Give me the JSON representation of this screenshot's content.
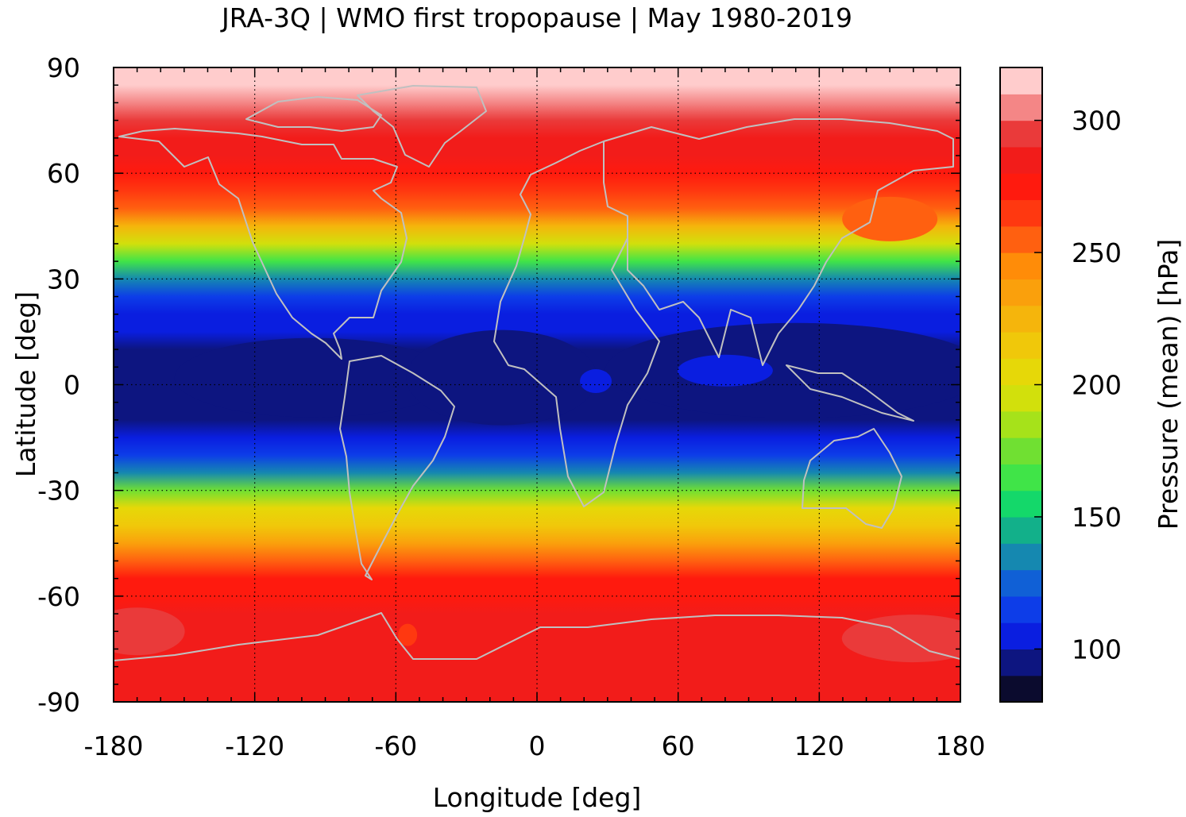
{
  "chart_data": {
    "type": "heatmap",
    "title": "JRA-3Q | WMO first tropopause | May 1980-2019",
    "xlabel": "Longitude [deg]",
    "ylabel": "Latitude [deg]",
    "xlim": [
      -180,
      180
    ],
    "ylim": [
      -90,
      90
    ],
    "x_ticks": [
      -180,
      -120,
      -60,
      0,
      60,
      120,
      180
    ],
    "y_ticks": [
      90,
      60,
      30,
      0,
      -30,
      -60,
      -90
    ],
    "x_tick_labels": [
      "-180",
      "-120",
      "-60",
      "0",
      "60",
      "120",
      "180"
    ],
    "y_tick_labels": [
      "90",
      "60",
      "30",
      "0",
      "-30",
      "-60",
      "-90"
    ],
    "grid": true,
    "overlay": "gray coastlines",
    "colorbar": {
      "label": "Pressure (mean) [hPa]",
      "range": [
        80,
        320
      ],
      "ticks": [
        100,
        150,
        200,
        250,
        300
      ],
      "tick_labels": [
        "100",
        "150",
        "200",
        "250",
        "300"
      ],
      "bands": [
        {
          "min": 80,
          "max": 90,
          "color": "#0b0b2e"
        },
        {
          "min": 90,
          "max": 100,
          "color": "#0d1580"
        },
        {
          "min": 100,
          "max": 110,
          "color": "#0a1ee0"
        },
        {
          "min": 110,
          "max": 120,
          "color": "#0d3de8"
        },
        {
          "min": 120,
          "max": 130,
          "color": "#1060d6"
        },
        {
          "min": 130,
          "max": 140,
          "color": "#1588b0"
        },
        {
          "min": 140,
          "max": 150,
          "color": "#12b08a"
        },
        {
          "min": 150,
          "max": 160,
          "color": "#14d86a"
        },
        {
          "min": 160,
          "max": 170,
          "color": "#40e448"
        },
        {
          "min": 170,
          "max": 180,
          "color": "#70e032"
        },
        {
          "min": 180,
          "max": 190,
          "color": "#a6e21a"
        },
        {
          "min": 190,
          "max": 200,
          "color": "#d2e00c"
        },
        {
          "min": 200,
          "max": 210,
          "color": "#e6d808"
        },
        {
          "min": 210,
          "max": 220,
          "color": "#f0c80a"
        },
        {
          "min": 220,
          "max": 230,
          "color": "#f5b50c"
        },
        {
          "min": 230,
          "max": 240,
          "color": "#faa00c"
        },
        {
          "min": 240,
          "max": 250,
          "color": "#ff8c08"
        },
        {
          "min": 250,
          "max": 260,
          "color": "#ff6010"
        },
        {
          "min": 260,
          "max": 270,
          "color": "#ff3810"
        },
        {
          "min": 270,
          "max": 280,
          "color": "#ff1a0e"
        },
        {
          "min": 280,
          "max": 290,
          "color": "#f21c1a"
        },
        {
          "min": 290,
          "max": 300,
          "color": "#ea3a3a"
        },
        {
          "min": 300,
          "max": 310,
          "color": "#f48686"
        },
        {
          "min": 310,
          "max": 320,
          "color": "#ffcccc"
        }
      ]
    },
    "zonal_mean_profile": {
      "latitude": [
        90,
        85,
        80,
        75,
        70,
        65,
        60,
        55,
        50,
        45,
        40,
        35,
        30,
        25,
        20,
        15,
        10,
        5,
        0,
        -5,
        -10,
        -15,
        -20,
        -25,
        -30,
        -35,
        -40,
        -45,
        -50,
        -55,
        -60,
        -65,
        -70,
        -75,
        -80,
        -85,
        -90
      ],
      "pressure_hpa": [
        312,
        312,
        305,
        296,
        289,
        282,
        278,
        268,
        250,
        225,
        195,
        160,
        130,
        112,
        104,
        100,
        96,
        94,
        93,
        95,
        99,
        104,
        112,
        135,
        175,
        205,
        215,
        230,
        250,
        272,
        278,
        280,
        282,
        283,
        284,
        282,
        280
      ]
    }
  }
}
